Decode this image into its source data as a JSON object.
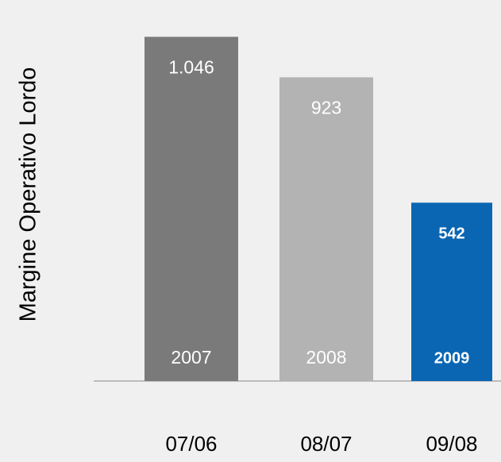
{
  "chart_data": {
    "type": "bar",
    "y_label": "Margine Operativo Lordo",
    "categories": [
      "07/06",
      "08/07",
      "09/08"
    ],
    "bar_labels": [
      "2007",
      "2008",
      "2009"
    ],
    "values": [
      1046,
      923,
      542
    ],
    "value_labels": [
      "1.046",
      "923",
      "542"
    ],
    "colors": [
      "#7a7a7a",
      "#b3b3b3",
      "#0a66b3"
    ],
    "ylim": [
      0,
      1100
    ]
  }
}
